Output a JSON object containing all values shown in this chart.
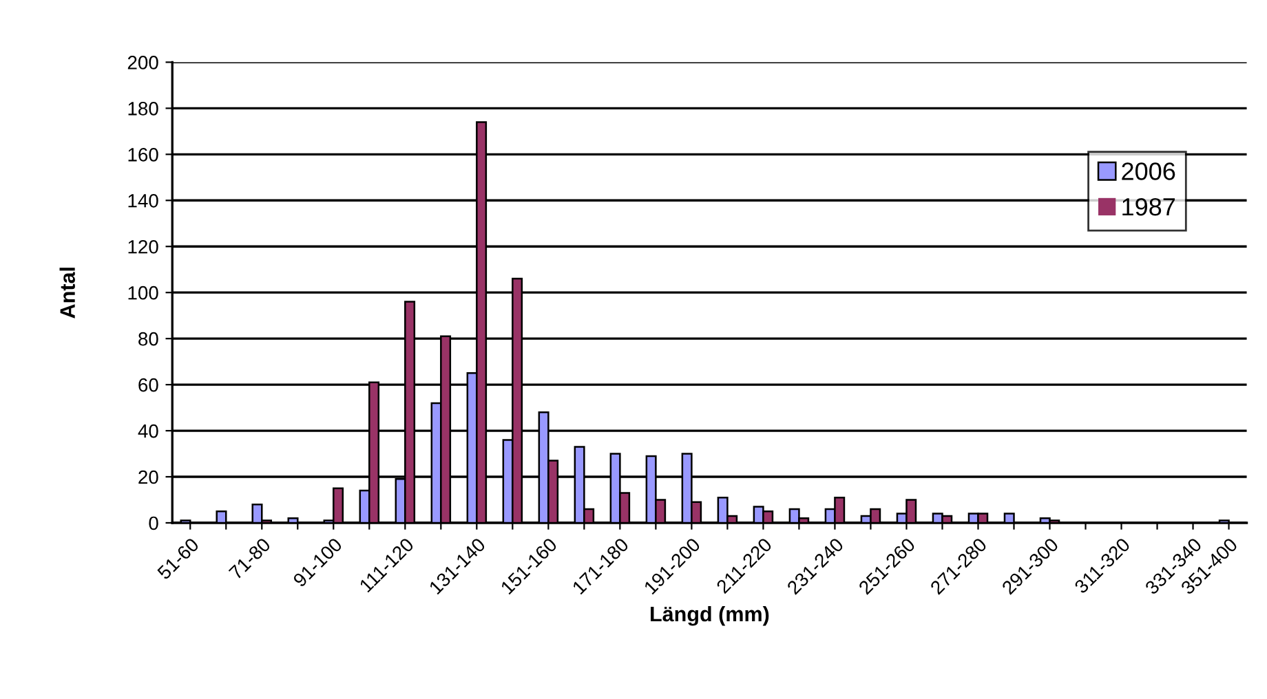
{
  "chart_data": {
    "type": "bar",
    "xlabel": "Längd (mm)",
    "ylabel": "Antal",
    "categories": [
      "51-60",
      null,
      "71-80",
      null,
      "91-100",
      null,
      "111-120",
      null,
      "131-140",
      null,
      "151-160",
      null,
      "171-180",
      null,
      "191-200",
      null,
      "211-220",
      null,
      "231-240",
      null,
      "251-260",
      null,
      "271-280",
      null,
      "291-300",
      null,
      "311-320",
      null,
      "331-340",
      "351-400"
    ],
    "series": [
      {
        "name": "2006",
        "color": "#9999ff",
        "values": [
          1,
          5,
          8,
          2,
          1,
          14,
          19,
          52,
          65,
          36,
          48,
          33,
          30,
          29,
          30,
          11,
          7,
          6,
          6,
          3,
          4,
          4,
          4,
          4,
          2,
          0,
          0,
          0,
          0,
          1
        ]
      },
      {
        "name": "1987",
        "color": "#993366",
        "values": [
          0,
          0,
          1,
          0,
          15,
          61,
          96,
          81,
          174,
          106,
          27,
          6,
          13,
          10,
          9,
          3,
          5,
          2,
          11,
          6,
          10,
          3,
          4,
          0,
          1,
          0,
          0,
          0,
          0,
          0
        ]
      }
    ],
    "ylim": [
      0,
      200
    ],
    "yticks": [
      0,
      20,
      40,
      60,
      80,
      100,
      120,
      140,
      160,
      180,
      200
    ],
    "grid": "y",
    "legend": "right"
  }
}
